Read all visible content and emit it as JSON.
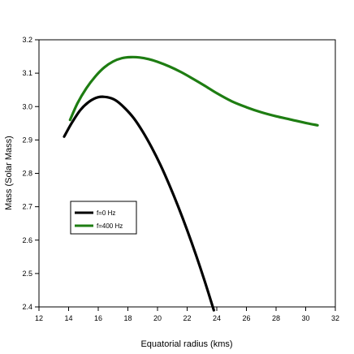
{
  "chart_data": {
    "type": "line",
    "xlabel": "Equatorial radius (kms)",
    "ylabel": "Mass (Solar Mass)",
    "xlim": [
      12,
      32
    ],
    "ylim": [
      2.4,
      3.2
    ],
    "xticks": [
      12,
      14,
      16,
      18,
      20,
      22,
      24,
      26,
      28,
      30,
      32
    ],
    "yticks": [
      2.4,
      2.5,
      2.6,
      2.7,
      2.8,
      2.9,
      3.0,
      3.1,
      3.2
    ],
    "xtick_labels": [
      "12",
      "14",
      "16",
      "18",
      "20",
      "22",
      "24",
      "26",
      "28",
      "30",
      "32"
    ],
    "ytick_labels": [
      "2.4",
      "2.5",
      "2.6",
      "2.7",
      "2.8",
      "2.9",
      "3.0",
      "3.1",
      "3.2"
    ],
    "grid": false,
    "legend_position": "lower-left",
    "series": [
      {
        "name": "f=0 Hz",
        "color": "#000000",
        "x": [
          13.7,
          14.2,
          14.8,
          15.4,
          16.0,
          16.6,
          17.2,
          17.8,
          18.4,
          19.0,
          19.6,
          20.2,
          20.8,
          21.4,
          22.0,
          22.6,
          23.2,
          23.8
        ],
        "y": [
          2.91,
          2.95,
          2.99,
          3.015,
          3.028,
          3.028,
          3.018,
          2.995,
          2.965,
          2.925,
          2.878,
          2.825,
          2.765,
          2.7,
          2.63,
          2.555,
          2.475,
          2.39
        ]
      },
      {
        "name": "f=400 Hz",
        "color": "#1e7d12",
        "x": [
          14.1,
          14.6,
          15.2,
          15.8,
          16.4,
          17.0,
          17.6,
          18.2,
          18.8,
          19.4,
          20.0,
          20.8,
          21.6,
          22.4,
          23.2,
          24.0,
          25.0,
          26.0,
          27.0,
          28.0,
          29.0,
          30.0,
          30.8
        ],
        "y": [
          2.96,
          3.01,
          3.055,
          3.09,
          3.117,
          3.135,
          3.145,
          3.148,
          3.147,
          3.142,
          3.134,
          3.12,
          3.103,
          3.083,
          3.062,
          3.04,
          3.016,
          2.998,
          2.983,
          2.971,
          2.961,
          2.951,
          2.944
        ]
      }
    ]
  }
}
